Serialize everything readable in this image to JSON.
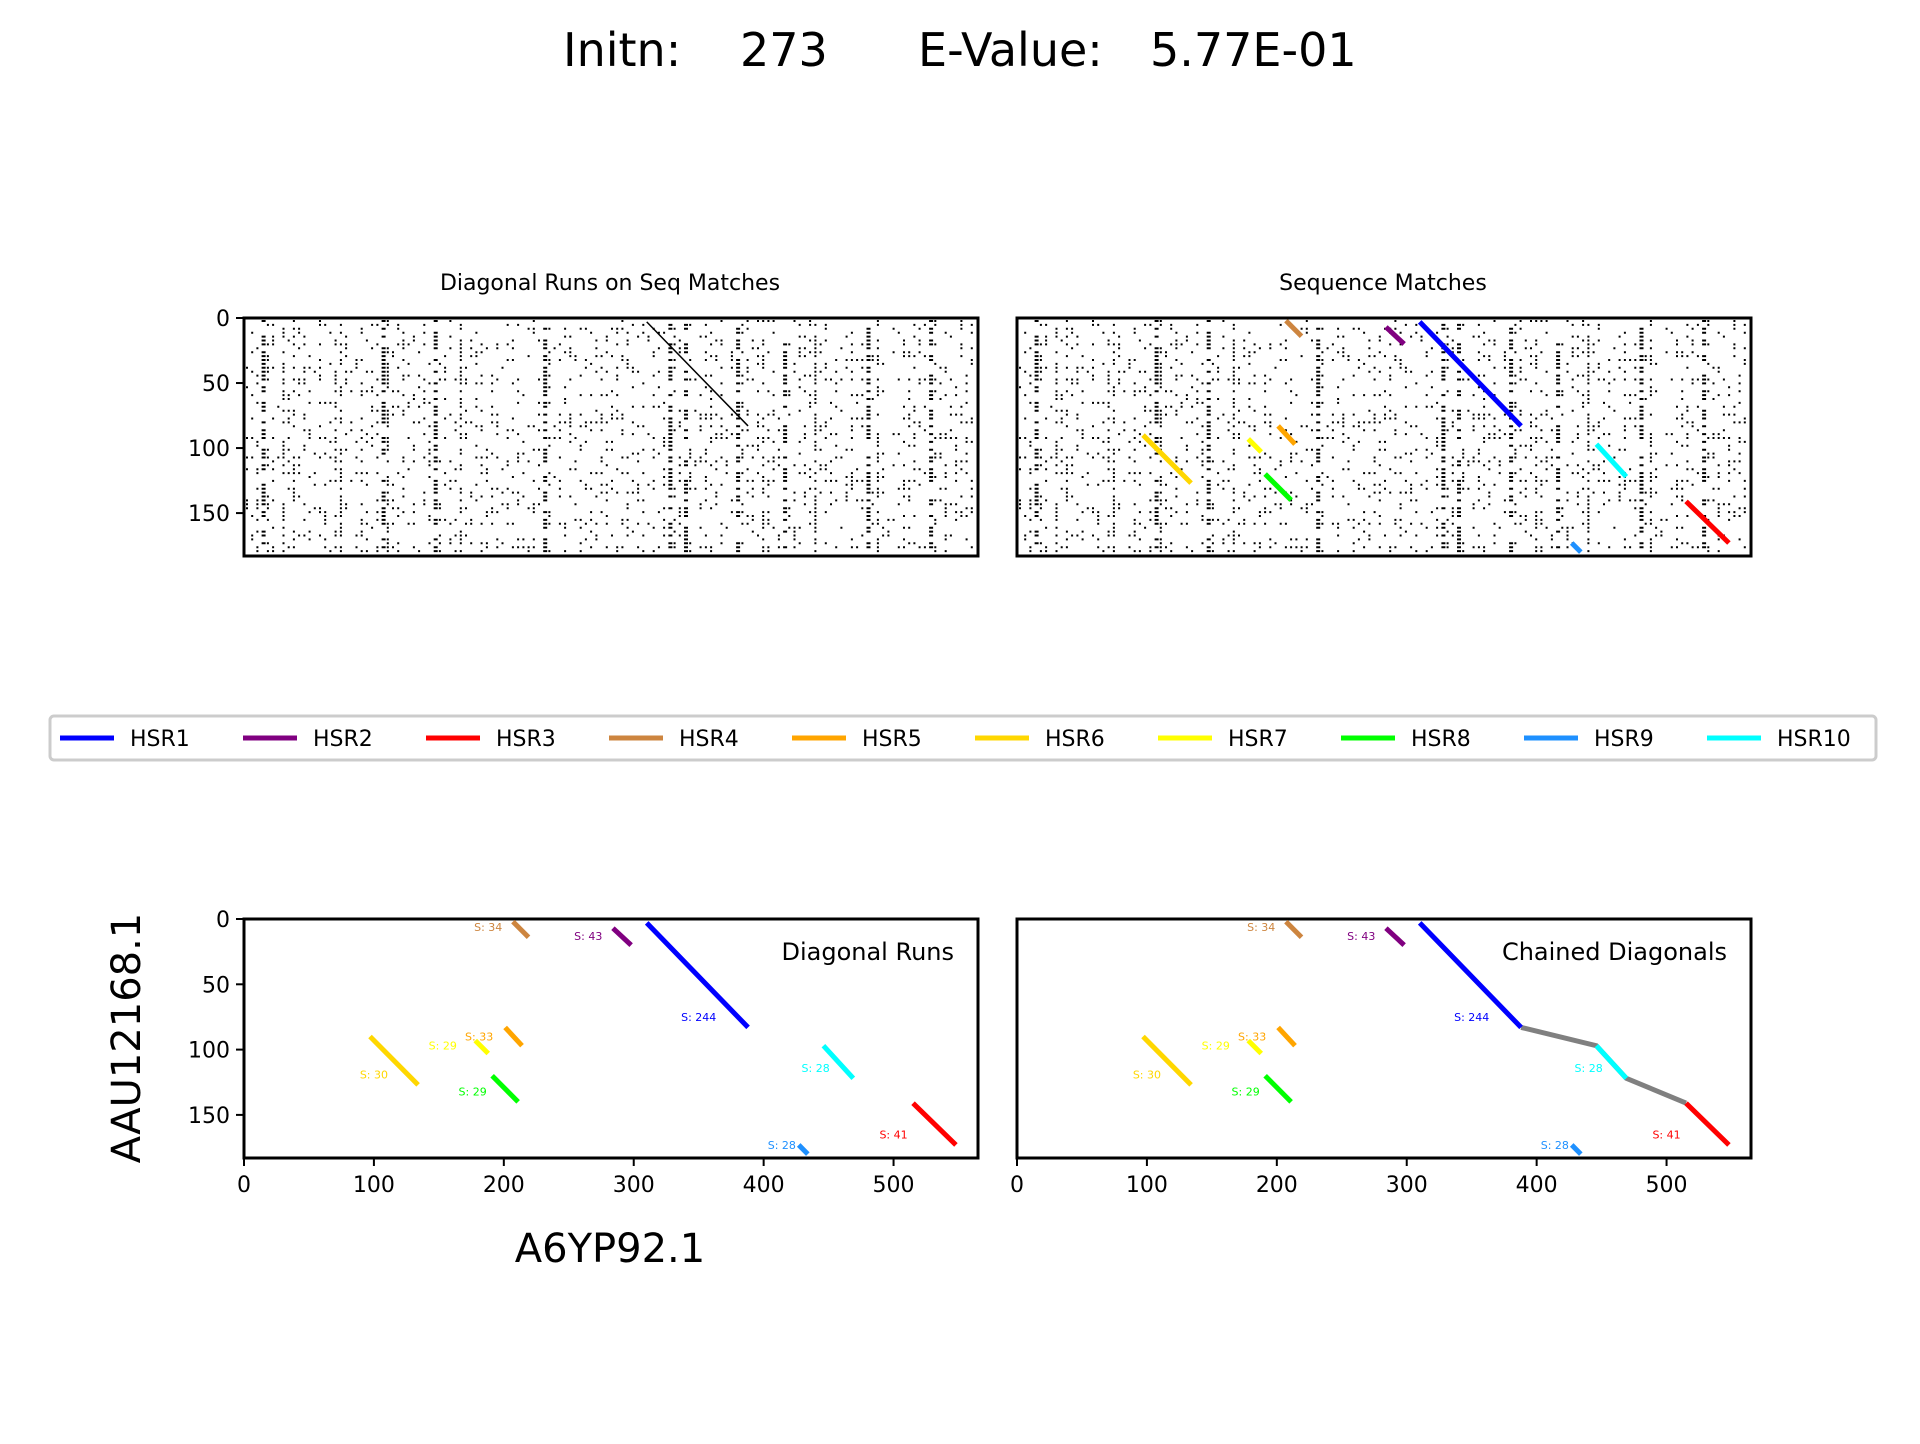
{
  "figure": {
    "title_initn_label": "Initn:",
    "title_initn_value": "273",
    "title_evalue_label": "E-Value:",
    "title_evalue_value": "5.77E-01",
    "ylabel": "AAU12168.1",
    "xlabel": "A6YP92.1"
  },
  "legend": [
    {
      "name": "HSR1",
      "color": "#0000ff"
    },
    {
      "name": "HSR2",
      "color": "#800080"
    },
    {
      "name": "HSR3",
      "color": "#ff0000"
    },
    {
      "name": "HSR4",
      "color": "#cd853f"
    },
    {
      "name": "HSR5",
      "color": "#ffa500"
    },
    {
      "name": "HSR6",
      "color": "#ffd700"
    },
    {
      "name": "HSR7",
      "color": "#ffff00"
    },
    {
      "name": "HSR8",
      "color": "#00ff00"
    },
    {
      "name": "HSR9",
      "color": "#1e90ff"
    },
    {
      "name": "HSR10",
      "color": "#00ffff"
    }
  ],
  "panels": {
    "top_left_title": "Diagonal Runs on Seq Matches",
    "top_right_title": "Sequence Matches",
    "bottom_left_label": "Diagonal Runs",
    "bottom_right_label": "Chained Diagonals"
  },
  "chart_data": {
    "type": "line",
    "xlim": [
      0,
      565
    ],
    "ylim": [
      183,
      0
    ],
    "xticks": [
      "0",
      "100",
      "200",
      "300",
      "400",
      "500"
    ],
    "xtick_values": [
      0,
      100,
      200,
      300,
      400,
      500
    ],
    "yticks": [
      "0",
      "50",
      "100",
      "150"
    ],
    "ytick_values": [
      0,
      50,
      100,
      150
    ],
    "segments": [
      {
        "hsr": "HSR1",
        "color": "#0000ff",
        "x": [
          310,
          388
        ],
        "y": [
          3,
          83
        ],
        "score": "S: 244",
        "score_pos": [
          350,
          78
        ]
      },
      {
        "hsr": "HSR2",
        "color": "#800080",
        "x": [
          284,
          298
        ],
        "y": [
          7,
          20
        ],
        "score": "S: 43",
        "score_pos": [
          265,
          16
        ]
      },
      {
        "hsr": "HSR3",
        "color": "#ff0000",
        "x": [
          515,
          548
        ],
        "y": [
          141,
          173
        ],
        "score": "S: 41",
        "score_pos": [
          500,
          168
        ]
      },
      {
        "hsr": "HSR4",
        "color": "#cd853f",
        "x": [
          207,
          219
        ],
        "y": [
          2,
          14
        ],
        "score": "S: 34",
        "score_pos": [
          188,
          9
        ]
      },
      {
        "hsr": "HSR5",
        "color": "#ffa500",
        "x": [
          201,
          214
        ],
        "y": [
          83,
          97
        ],
        "score": "S: 33",
        "score_pos": [
          181,
          93
        ]
      },
      {
        "hsr": "HSR6",
        "color": "#ffd700",
        "x": [
          97,
          134
        ],
        "y": [
          90,
          127
        ],
        "score": "S: 30",
        "score_pos": [
          100,
          122
        ]
      },
      {
        "hsr": "HSR7",
        "color": "#ffff00",
        "x": [
          178,
          188
        ],
        "y": [
          93,
          103
        ],
        "score": "S: 29",
        "score_pos": [
          153,
          100
        ]
      },
      {
        "hsr": "HSR8",
        "color": "#00ff00",
        "x": [
          191,
          211
        ],
        "y": [
          120,
          140
        ],
        "score": "S: 29",
        "score_pos": [
          176,
          135
        ]
      },
      {
        "hsr": "HSR9",
        "color": "#1e90ff",
        "x": [
          427,
          434
        ],
        "y": [
          173,
          180
        ],
        "score": "S: 28",
        "score_pos": [
          414,
          176
        ]
      },
      {
        "hsr": "HSR10",
        "color": "#00ffff",
        "x": [
          446,
          469
        ],
        "y": [
          97,
          122
        ],
        "score": "S: 28",
        "score_pos": [
          440,
          117
        ]
      }
    ],
    "chain": {
      "color": "#808080",
      "x": [
        388,
        446,
        469,
        515
      ],
      "y": [
        83,
        97,
        122,
        141
      ]
    }
  }
}
